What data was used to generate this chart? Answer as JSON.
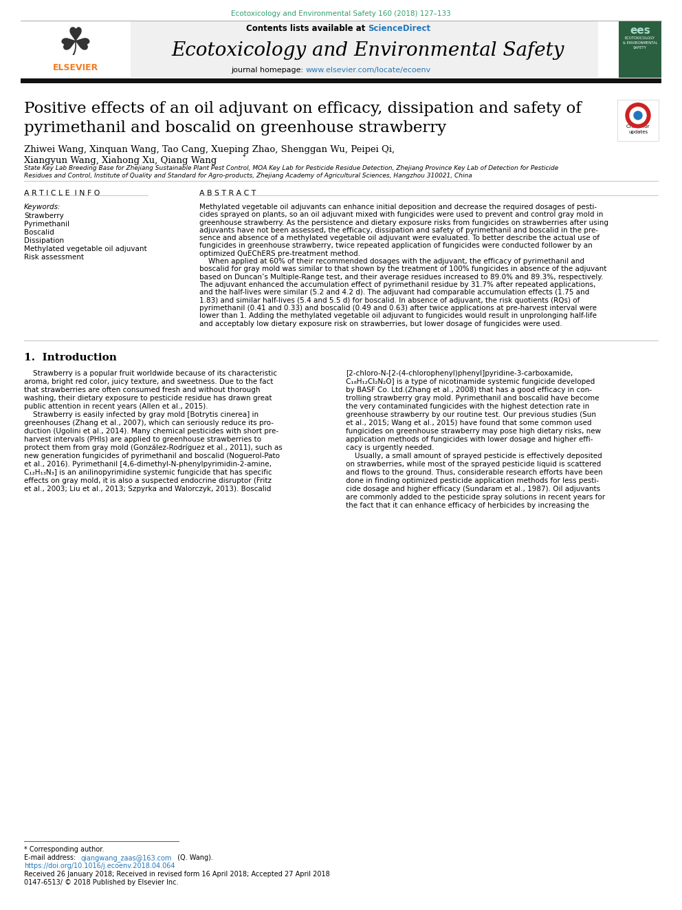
{
  "journal_ref": "Ecotoxicology and Environmental Safety 160 (2018) 127–133",
  "journal_name": "Ecotoxicology and Environmental Safety",
  "journal_homepage": "journal homepage: www.elsevier.com/locate/ecoenv",
  "contents_line": "Contents lists available at ScienceDirect",
  "title_line1": "Positive effects of an oil adjuvant on efficacy, dissipation and safety of",
  "title_line2": "pyrimethanil and boscalid on greenhouse strawberry",
  "author_line1": "Zhiwei Wang, Xinquan Wang, Tao Cang, Xueping Zhao, Shenggan Wu, Peipei Qi,",
  "author_line2": "Xiangyun Wang, Xiahong Xu, Qiang Wang",
  "affiliation_line1": "State Key Lab Breeding Base for Zhejiang Sustainable Plant Pest Control, MOA Key Lab for Pesticide Residue Detection, Zhejiang Province Key Lab of Detection for Pesticide",
  "affiliation_line2": "Residues and Control, Institute of Quality and Standard for Agro-products, Zhejiang Academy of Agricultural Sciences, Hangzhou 310021, China",
  "article_info_title": "A R T I C L E  I N F O",
  "keywords_label": "Keywords:",
  "keywords": [
    "Strawberry",
    "Pyrimethanil",
    "Boscalid",
    "Dissipation",
    "Methylated vegetable oil adjuvant",
    "Risk assessment"
  ],
  "abstract_title": "A B S T R A C T",
  "abstract_lines": [
    "Methylated vegetable oil adjuvants can enhance initial deposition and decrease the required dosages of pesti-",
    "cides sprayed on plants, so an oil adjuvant mixed with fungicides were used to prevent and control gray mold in",
    "greenhouse strawberry. As the persistence and dietary exposure risks from fungicides on strawberries after using",
    "adjuvants have not been assessed, the efficacy, dissipation and safety of pyrimethanil and boscalid in the pre-",
    "sence and absence of a methylated vegetable oil adjuvant were evaluated. To better describe the actual use of",
    "fungicides in greenhouse strawberry, twice repeated application of fungicides were conducted follower by an",
    "optimized QuEChERS pre-treatment method.",
    "    When applied at 60% of their recommended dosages with the adjuvant, the efficacy of pyrimethanil and",
    "boscalid for gray mold was similar to that shown by the treatment of 100% fungicides in absence of the adjuvant",
    "based on Duncan’s Multiple-Range test, and their average residues increased to 89.0% and 89.3%, respectively.",
    "The adjuvant enhanced the accumulation effect of pyrimethanil residue by 31.7% after repeated applications,",
    "and the half-lives were similar (5.2 and 4.2 d). The adjuvant had comparable accumulation effects (1.75 and",
    "1.83) and similar half-lives (5.4 and 5.5 d) for boscalid. In absence of adjuvant, the risk quotients (RQs) of",
    "pyrimethanil (0.41 and 0.33) and boscalid (0.49 and 0.63) after twice applications at pre-harvest interval were",
    "lower than 1. Adding the methylated vegetable oil adjuvant to fungicides would result in unprolonging half-life",
    "and acceptably low dietary exposure risk on strawberries, but lower dosage of fungicides were used."
  ],
  "intro_title": "1.  Introduction",
  "left_intro_lines": [
    "    Strawberry is a popular fruit worldwide because of its characteristic",
    "aroma, bright red color, juicy texture, and sweetness. Due to the fact",
    "that strawberries are often consumed fresh and without thorough",
    "washing, their dietary exposure to pesticide residue has drawn great",
    "public attention in recent years (Allen et al., 2015).",
    "    Strawberry is easily infected by gray mold [Botrytis cinerea] in",
    "greenhouses (Zhang et al., 2007), which can seriously reduce its pro-",
    "duction (Ugolini et al., 2014). Many chemical pesticides with short pre-",
    "harvest intervals (PHIs) are applied to greenhouse strawberries to",
    "protect them from gray mold (González-Rodríguez et al., 2011), such as",
    "new generation fungicides of pyrimethanil and boscalid (Noguerol-Pato",
    "et al., 2016). Pyrimethanil [4,6-dimethyl-N-phenylpyrimidin-2-amine,",
    "C₁₂H₁₃N₃] is an anilinopyrimidine systemic fungicide that has specific",
    "effects on gray mold, it is also a suspected endocrine disruptor (Fritz",
    "et al., 2003; Liu et al., 2013; Szpyrka and Walorczyk, 2013). Boscalid"
  ],
  "right_intro_lines": [
    "[2-chloro-N-[2-(4-chlorophenyl)phenyl]pyridine-3-carboxamide,",
    "C₁₈H₁₂Cl₂N₂O] is a type of nicotinamide systemic fungicide developed",
    "by BASF Co. Ltd.(Zhang et al., 2008) that has a good efficacy in con-",
    "trolling strawberry gray mold. Pyrimethanil and boscalid have become",
    "the very contaminated fungicides with the highest detection rate in",
    "greenhouse strawberry by our routine test. Our previous studies (Sun",
    "et al., 2015; Wang et al., 2015) have found that some common used",
    "fungicides on greenhouse strawberry may pose high dietary risks, new",
    "application methods of fungicides with lower dosage and higher effi-",
    "cacy is urgently needed.",
    "    Usually, a small amount of sprayed pesticide is effectively deposited",
    "on strawberries, while most of the sprayed pesticide liquid is scattered",
    "and flows to the ground. Thus, considerable research efforts have been",
    "done in finding optimized pesticide application methods for less pesti-",
    "cide dosage and higher efficacy (Sundaram et al., 1987). Oil adjuvants",
    "are commonly added to the pesticide spray solutions in recent years for",
    "the fact that it can enhance efficacy of herbicides by increasing the"
  ],
  "footnote_star": "* Corresponding author.",
  "footnote_email_label": "E-mail address: ",
  "footnote_email_link": "qiangwang_zaas@163.com",
  "footnote_email_end": " (Q. Wang).",
  "footnote_doi": "https://doi.org/10.1016/j.ecoenv.2018.04.064",
  "footnote_received": "Received 26 January 2018; Received in revised form 16 April 2018; Accepted 27 April 2018",
  "footnote_issn": "0147-6513/ © 2018 Published by Elsevier Inc.",
  "bg_color": "#ffffff",
  "journal_ref_color": "#2e9e6e",
  "link_color": "#2277bb",
  "elsevier_orange": "#f47920"
}
